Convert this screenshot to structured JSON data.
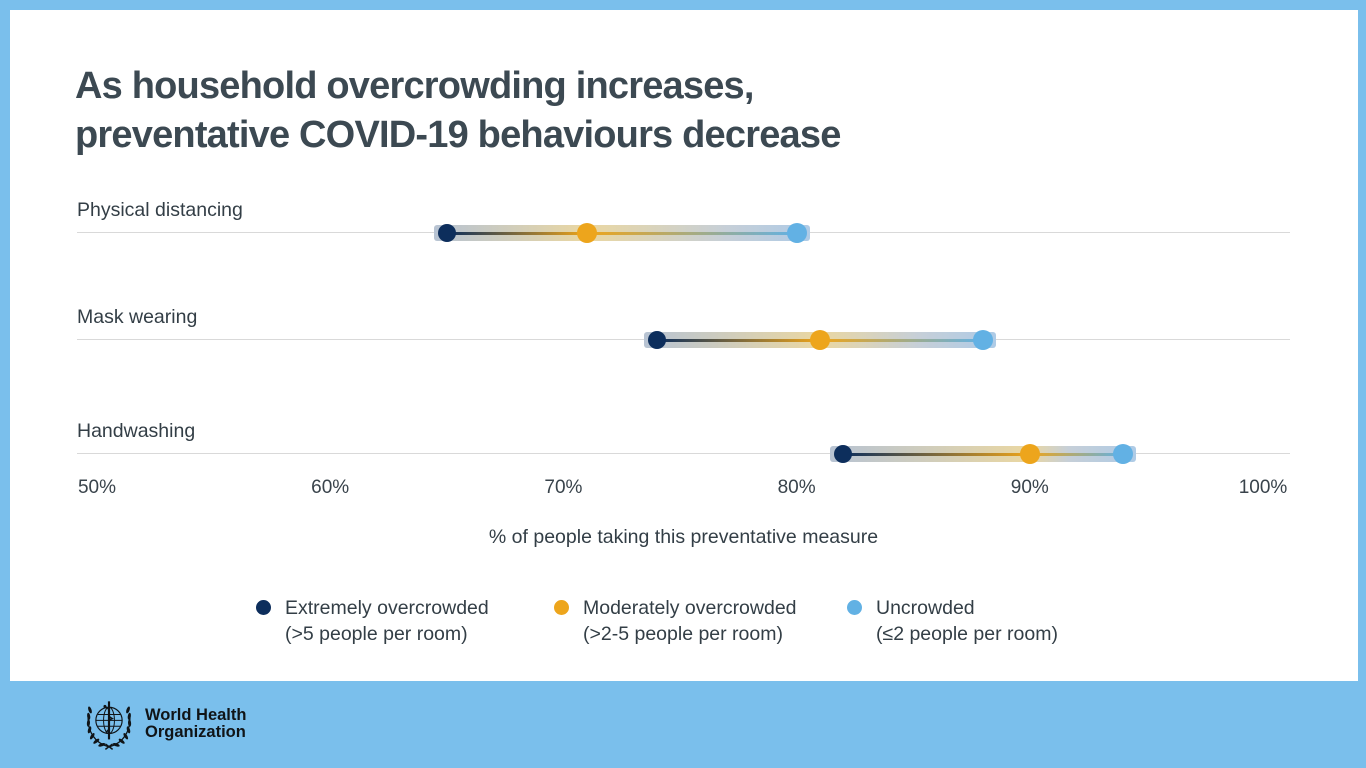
{
  "title": {
    "line1": "As household overcrowding increases,",
    "line2": "preventative COVID-19 behaviours decrease"
  },
  "chart_data": {
    "type": "dumbbell",
    "categories": [
      "Physical distancing",
      "Mask wearing",
      "Handwashing"
    ],
    "series": [
      {
        "name": "Extremely overcrowded (>5 people per room)",
        "color": "#0d2e5c",
        "values": [
          65,
          74,
          82
        ]
      },
      {
        "name": "Moderately overcrowded (>2-5 people per room)",
        "color": "#eda51c",
        "values": [
          71,
          81,
          90
        ]
      },
      {
        "name": "Uncrowded (≤2 people per room)",
        "color": "#62b1e4",
        "values": [
          80,
          88,
          94
        ]
      }
    ],
    "xlabel": "% of people taking this preventative measure",
    "x_ticks": [
      {
        "value": 50,
        "label": "50%"
      },
      {
        "value": 60,
        "label": "60%"
      },
      {
        "value": 70,
        "label": "70%"
      },
      {
        "value": 80,
        "label": "80%"
      },
      {
        "value": 90,
        "label": "90%"
      },
      {
        "value": 100,
        "label": "100%"
      }
    ],
    "xlim": [
      50,
      100
    ],
    "grid": false,
    "legend_position": "bottom"
  },
  "legend": {
    "items": [
      {
        "line1": "Extremely overcrowded",
        "line2": "(>5 people per room)",
        "color": "#0d2e5c"
      },
      {
        "line1": "Moderately overcrowded",
        "line2": "(>2-5 people per room)",
        "color": "#eda51c"
      },
      {
        "line1": "Uncrowded",
        "line2": "(≤2 people per room)",
        "color": "#62b1e4"
      }
    ]
  },
  "footer": {
    "org_line1": "World Health",
    "org_line2": "Organization"
  },
  "colors": {
    "background_blue": "#7abfec",
    "card_white": "#ffffff",
    "title_text": "#3c4952",
    "body_text": "#333e46",
    "axis_line": "#d9d9d9",
    "navy": "#0d2e5c",
    "orange": "#eda51c",
    "light_blue": "#62b1e4",
    "band_steel": "#b7c3d3",
    "band_gold": "#ead7a2",
    "band_pale_blue": "#aecbe6"
  }
}
